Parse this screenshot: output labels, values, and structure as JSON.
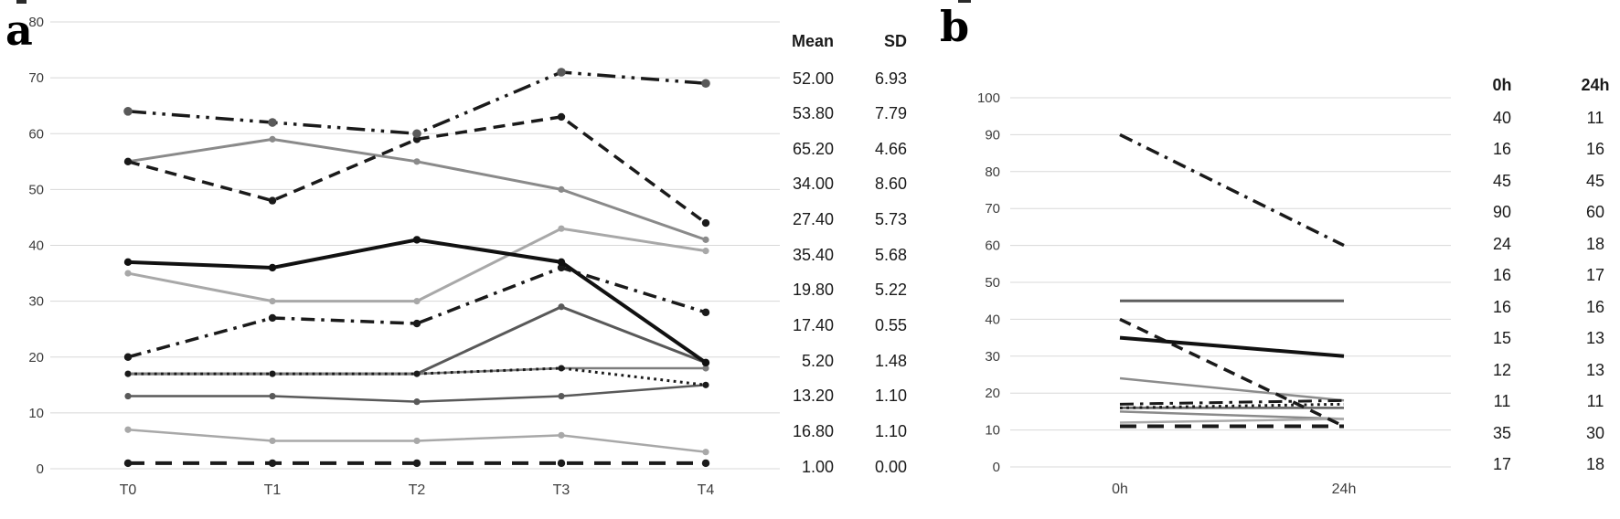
{
  "figure": {
    "panel_a_label": "a",
    "panel_b_label": "b"
  },
  "chart_data": [
    {
      "id": "panel-a",
      "type": "line",
      "title": "",
      "xlabel": "",
      "ylabel": "",
      "grid": true,
      "legend": "none",
      "categories": [
        "T0",
        "T1",
        "T2",
        "T3",
        "T4"
      ],
      "ylim": [
        0,
        80
      ],
      "yticks": [
        0,
        10,
        20,
        30,
        40,
        50,
        60,
        70,
        80
      ],
      "series": [
        {
          "name": "series-1",
          "style": "solid",
          "color": "#8a8a8a",
          "width": 3,
          "marker": true,
          "values": [
            55,
            59,
            55,
            50,
            41
          ]
        },
        {
          "name": "series-2",
          "style": "dashed",
          "color": "#1a1a1a",
          "width": 3.5,
          "marker": true,
          "marker_r": 4.2,
          "values": [
            55,
            48,
            59,
            63,
            44
          ]
        },
        {
          "name": "series-3",
          "style": "dash-dot-dot",
          "color": "#1a1a1a",
          "width": 3.5,
          "marker": true,
          "marker_color": "#595959",
          "marker_r": 4.8,
          "values": [
            64,
            62,
            60,
            71,
            69
          ]
        },
        {
          "name": "series-4",
          "style": "solid",
          "color": "#111111",
          "width": 4,
          "marker": true,
          "marker_r": 4.2,
          "values": [
            37,
            36,
            41,
            37,
            19
          ]
        },
        {
          "name": "series-5",
          "style": "dash-dot",
          "color": "#1a1a1a",
          "width": 3.5,
          "marker": true,
          "marker_r": 4.2,
          "values": [
            20,
            27,
            26,
            36,
            28
          ]
        },
        {
          "name": "series-6",
          "style": "solid",
          "color": "#a8a8a8",
          "width": 3,
          "marker": true,
          "values": [
            35,
            30,
            30,
            43,
            39
          ]
        },
        {
          "name": "series-7",
          "style": "solid",
          "color": "#595959",
          "width": 3,
          "marker": true,
          "values": [
            17,
            17,
            17,
            29,
            19
          ]
        },
        {
          "name": "series-8",
          "style": "solid",
          "color": "#7d7d7d",
          "width": 2.5,
          "marker": true,
          "values": [
            17,
            17,
            17,
            18,
            18
          ]
        },
        {
          "name": "series-9",
          "style": "solid",
          "color": "#a8a8a8",
          "width": 2.5,
          "marker": true,
          "values": [
            7,
            5,
            5,
            6,
            3
          ]
        },
        {
          "name": "series-10",
          "style": "solid",
          "color": "#595959",
          "width": 2.5,
          "marker": true,
          "values": [
            13,
            13,
            12,
            13,
            15
          ]
        },
        {
          "name": "series-11",
          "style": "dotted",
          "color": "#1a1a1a",
          "width": 3,
          "marker": true,
          "marker_r": 3.4,
          "values": [
            17,
            17,
            17,
            18,
            15
          ]
        },
        {
          "name": "series-12",
          "style": "long-dash",
          "color": "#1a1a1a",
          "width": 4,
          "marker": true,
          "marker_r": 4.2,
          "values": [
            1,
            1,
            1,
            1,
            1
          ]
        }
      ],
      "side_table": {
        "headers": [
          "Mean",
          "SD"
        ],
        "rows": [
          [
            "52.00",
            "6.93"
          ],
          [
            "53.80",
            "7.79"
          ],
          [
            "65.20",
            "4.66"
          ],
          [
            "34.00",
            "8.60"
          ],
          [
            "27.40",
            "5.73"
          ],
          [
            "35.40",
            "5.68"
          ],
          [
            "19.80",
            "5.22"
          ],
          [
            "17.40",
            "0.55"
          ],
          [
            "5.20",
            "1.48"
          ],
          [
            "13.20",
            "1.10"
          ],
          [
            "16.80",
            "1.10"
          ],
          [
            "1.00",
            "0.00"
          ]
        ]
      }
    },
    {
      "id": "panel-b",
      "type": "line",
      "title": "",
      "xlabel": "",
      "ylabel": "",
      "grid": true,
      "legend": "none",
      "categories": [
        "0h",
        "24h"
      ],
      "ylim": [
        0,
        100
      ],
      "yticks": [
        0,
        10,
        20,
        30,
        40,
        50,
        60,
        70,
        80,
        90,
        100
      ],
      "series": [
        {
          "name": "series-1",
          "style": "dashed",
          "color": "#1a1a1a",
          "width": 3.5,
          "marker": false,
          "values": [
            40,
            11
          ]
        },
        {
          "name": "series-2",
          "style": "solid",
          "color": "#7d7d7d",
          "width": 2.5,
          "marker": false,
          "values": [
            16,
            16
          ]
        },
        {
          "name": "series-3",
          "style": "solid",
          "color": "#5f5f5f",
          "width": 3,
          "marker": false,
          "values": [
            45,
            45
          ]
        },
        {
          "name": "series-4",
          "style": "dash-dot",
          "color": "#1a1a1a",
          "width": 3.5,
          "marker": false,
          "values": [
            90,
            60
          ]
        },
        {
          "name": "series-5",
          "style": "solid",
          "color": "#8c8c8c",
          "width": 2.5,
          "marker": false,
          "values": [
            24,
            18
          ]
        },
        {
          "name": "series-6",
          "style": "dotted",
          "color": "#1a1a1a",
          "width": 3,
          "marker": false,
          "values": [
            16,
            17
          ]
        },
        {
          "name": "series-7",
          "style": "solid",
          "color": "#696969",
          "width": 2.5,
          "marker": false,
          "values": [
            16,
            16
          ]
        },
        {
          "name": "series-8",
          "style": "solid",
          "color": "#8a8a8a",
          "width": 2.5,
          "marker": false,
          "values": [
            15,
            13
          ]
        },
        {
          "name": "series-9",
          "style": "solid",
          "color": "#ababab",
          "width": 2.5,
          "marker": false,
          "values": [
            12,
            13
          ]
        },
        {
          "name": "series-10",
          "style": "long-dash",
          "color": "#1a1a1a",
          "width": 4,
          "marker": false,
          "values": [
            11,
            11
          ]
        },
        {
          "name": "series-11",
          "style": "solid",
          "color": "#111111",
          "width": 4,
          "marker": false,
          "values": [
            35,
            30
          ]
        },
        {
          "name": "series-12",
          "style": "dash-dot",
          "color": "#1a1a1a",
          "width": 3,
          "marker": false,
          "values": [
            17,
            18
          ]
        }
      ],
      "side_table": {
        "headers": [
          "0h",
          "24h"
        ],
        "rows": [
          [
            "40",
            "11"
          ],
          [
            "16",
            "16"
          ],
          [
            "45",
            "45"
          ],
          [
            "90",
            "60"
          ],
          [
            "24",
            "18"
          ],
          [
            "16",
            "17"
          ],
          [
            "16",
            "16"
          ],
          [
            "15",
            "13"
          ],
          [
            "12",
            "13"
          ],
          [
            "11",
            "11"
          ],
          [
            "35",
            "30"
          ],
          [
            "17",
            "18"
          ]
        ]
      }
    }
  ]
}
